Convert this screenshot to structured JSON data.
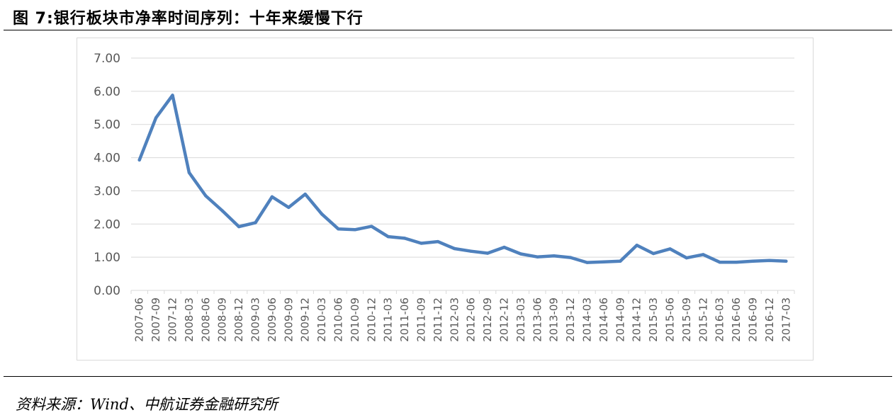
{
  "figure": {
    "title": "图 7:银行板块市净率时间序列：十年来缓慢下行",
    "source": "资料来源：Wind、中航证券金融研究所"
  },
  "chart_data": {
    "type": "line",
    "title": "",
    "xlabel": "",
    "ylabel": "",
    "ylim": [
      0,
      7
    ],
    "yticks": [
      "0.00",
      "1.00",
      "2.00",
      "3.00",
      "4.00",
      "5.00",
      "6.00",
      "7.00"
    ],
    "grid": "horizontal",
    "legend": "none",
    "line_color": "#4f81bd",
    "grid_color": "#d9d9d9",
    "categories": [
      "2007-06",
      "2007-09",
      "2007-12",
      "2008-03",
      "2008-06",
      "2008-09",
      "2008-12",
      "2009-03",
      "2009-06",
      "2009-09",
      "2009-12",
      "2010-03",
      "2010-06",
      "2010-09",
      "2010-12",
      "2011-03",
      "2011-06",
      "2011-09",
      "2011-12",
      "2012-03",
      "2012-06",
      "2012-09",
      "2012-12",
      "2013-03",
      "2013-06",
      "2013-09",
      "2013-12",
      "2014-03",
      "2014-06",
      "2014-09",
      "2014-12",
      "2015-03",
      "2015-06",
      "2015-09",
      "2015-12",
      "2016-03",
      "2016-06",
      "2016-09",
      "2016-12",
      "2017-03"
    ],
    "values": [
      3.93,
      5.2,
      5.88,
      3.55,
      2.85,
      2.4,
      1.92,
      2.04,
      2.82,
      2.5,
      2.9,
      2.3,
      1.85,
      1.83,
      1.93,
      1.62,
      1.57,
      1.42,
      1.47,
      1.26,
      1.18,
      1.12,
      1.3,
      1.1,
      1.01,
      1.04,
      0.99,
      0.84,
      0.86,
      0.88,
      1.36,
      1.11,
      1.25,
      0.98,
      1.08,
      0.85,
      0.85,
      0.88,
      0.9,
      0.88
    ]
  }
}
